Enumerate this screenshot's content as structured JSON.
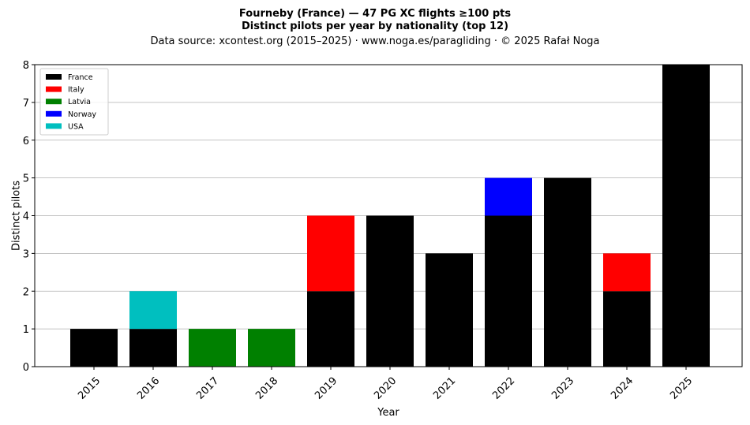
{
  "chart_data": {
    "type": "bar",
    "stacked": true,
    "title": "Fourneby (France)  —  47 PG XC flights ≥100 pts",
    "subtitle": "Distinct pilots per year by nationality (top 12)",
    "source": "Data source: xcontest.org (2015–2025)  ·  www.noga.es/paragliding  ·  © 2025 Rafał Noga",
    "xlabel": "Year",
    "ylabel": "Distinct pilots",
    "ylim": [
      0,
      8
    ],
    "yticks": [
      "0",
      "1",
      "2",
      "3",
      "4",
      "5",
      "6",
      "7",
      "8"
    ],
    "grid": "y",
    "legend_position": "top-left",
    "categories": [
      "2015",
      "2016",
      "2017",
      "2018",
      "2019",
      "2020",
      "2021",
      "2022",
      "2023",
      "2024",
      "2025"
    ],
    "series": [
      {
        "name": "France",
        "color": "#000000",
        "values": [
          1,
          1,
          0,
          0,
          2,
          4,
          3,
          4,
          5,
          2,
          8
        ]
      },
      {
        "name": "Italy",
        "color": "#ff0000",
        "values": [
          0,
          0,
          0,
          0,
          2,
          0,
          0,
          0,
          0,
          1,
          0
        ]
      },
      {
        "name": "Latvia",
        "color": "#008000",
        "values": [
          0,
          0,
          1,
          1,
          0,
          0,
          0,
          0,
          0,
          0,
          0
        ]
      },
      {
        "name": "Norway",
        "color": "#0000ff",
        "values": [
          0,
          0,
          0,
          0,
          0,
          0,
          0,
          1,
          0,
          0,
          0
        ]
      },
      {
        "name": "USA",
        "color": "#00bfbf",
        "values": [
          0,
          1,
          0,
          0,
          0,
          0,
          0,
          0,
          0,
          0,
          0
        ]
      }
    ]
  }
}
